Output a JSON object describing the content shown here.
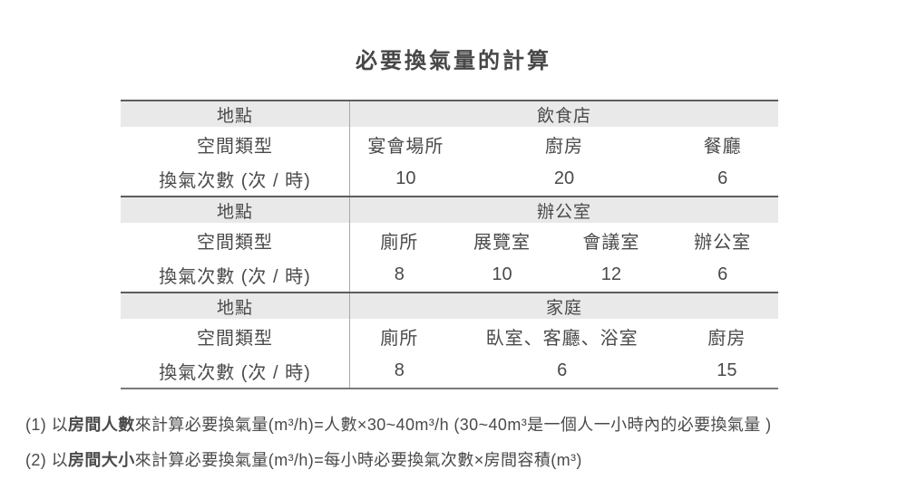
{
  "title": "必要換氣量的計算",
  "table": {
    "row_labels": {
      "location": "地點",
      "space_type": "空間類型",
      "ach": "換氣次數 (次 / 時)"
    }
  },
  "chart_data": {
    "type": "table",
    "title": "必要換氣量的計算",
    "row_headers": [
      "地點",
      "空間類型",
      "換氣次數 (次 / 時)"
    ],
    "sections": [
      {
        "location": "飲食店",
        "space_types": [
          "宴會場所",
          "廚房",
          "餐廳"
        ],
        "ach_values": [
          10,
          20,
          6
        ]
      },
      {
        "location": "辦公室",
        "space_types": [
          "廁所",
          "展覽室",
          "會議室",
          "辦公室"
        ],
        "ach_values": [
          8,
          10,
          12,
          6
        ]
      },
      {
        "location": "家庭",
        "space_types": [
          "廁所",
          "臥室、客廳、浴室",
          "廚房"
        ],
        "ach_values": [
          8,
          6,
          15
        ]
      }
    ],
    "notes": [
      "(1) 以房間人數來計算必要換氣量(m³/h)=人數×30~40m³/h (30~40m³是一個人一小時內的必要換氣量 )",
      "(2) 以房間大小來計算必要換氣量(m³/h)=每小時必要換氣次數×房間容積(m³)"
    ]
  },
  "footnotes": [
    {
      "parts": [
        {
          "text": "(1) 以",
          "bold": false
        },
        {
          "text": "房間人數",
          "bold": true
        },
        {
          "text": "來計算必要換氣量(m³/h)=人數×30~40m³/h (30~40m³是一個人一小時內的必要換氣量 )",
          "bold": false
        }
      ]
    },
    {
      "parts": [
        {
          "text": "(2) 以",
          "bold": false
        },
        {
          "text": "房間大小",
          "bold": true
        },
        {
          "text": "來計算必要換氣量(m³/h)=每小時必要換氣次數×房間容積(m³)",
          "bold": false
        }
      ]
    }
  ],
  "colors": {
    "background": "#ffffff",
    "text": "#4a4a4a",
    "header_row_bg": "#e9e9e9",
    "section_divider": "#5d5d5d",
    "column_divider": "#a8a8a8"
  }
}
